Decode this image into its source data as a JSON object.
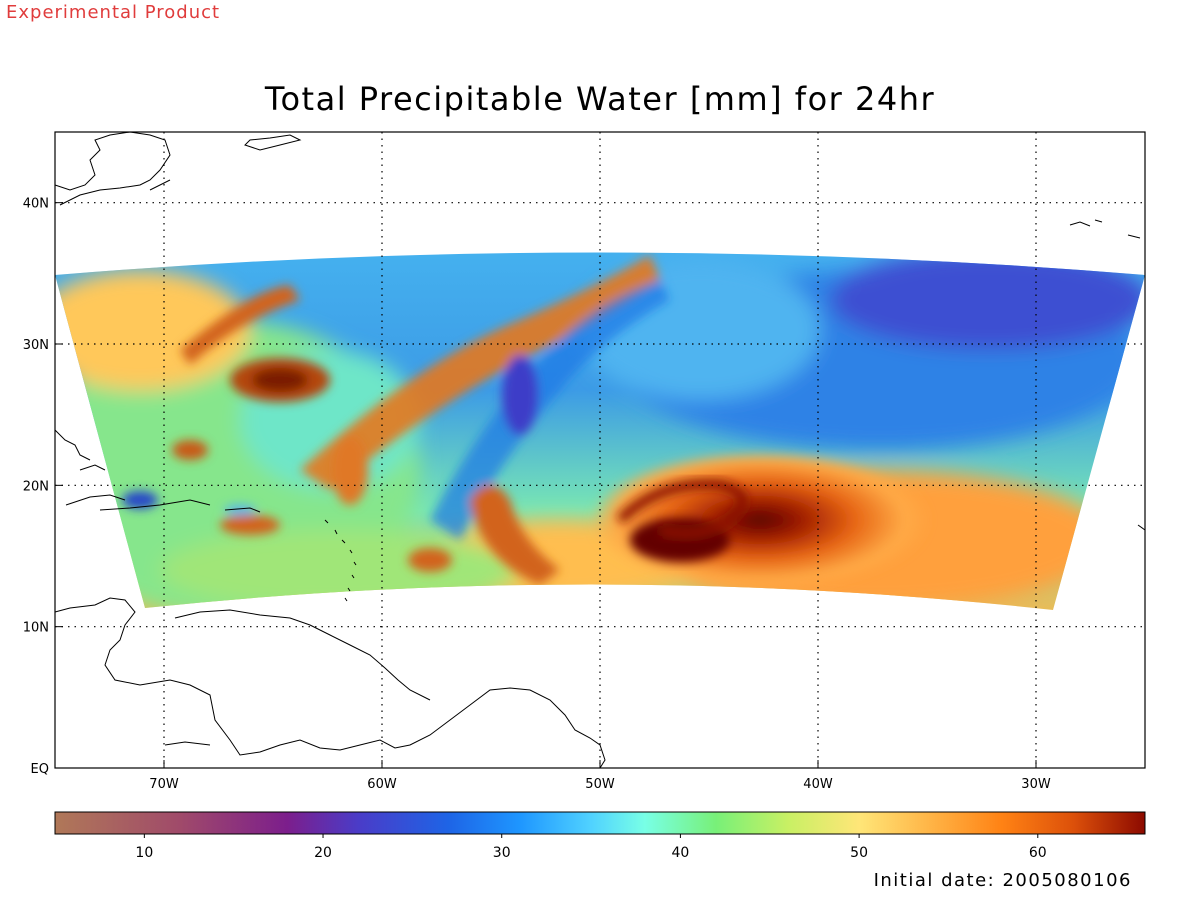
{
  "header": {
    "badge": "Experimental Product",
    "title": "Total Precipitable Water [mm] for 24hr",
    "initial_date": "Initial date: 2005080106"
  },
  "colors": {
    "badge": "#e03c3c",
    "frame": "#000000",
    "grid": "#000000"
  },
  "map": {
    "projection": "lat-lon",
    "lon_range": [
      -75,
      -25
    ],
    "lat_range": [
      0,
      45
    ],
    "lon_ticks": [
      {
        "value": -70,
        "label": "70W"
      },
      {
        "value": -60,
        "label": "60W"
      },
      {
        "value": -50,
        "label": "50W"
      },
      {
        "value": -40,
        "label": "40W"
      },
      {
        "value": -30,
        "label": "30W"
      }
    ],
    "lat_ticks": [
      {
        "value": 0,
        "label": "EQ"
      },
      {
        "value": 10,
        "label": "10N"
      },
      {
        "value": 20,
        "label": "20N"
      },
      {
        "value": 30,
        "label": "30N"
      },
      {
        "value": 40,
        "label": "40N"
      }
    ],
    "gridlines": "dotted",
    "field": "total precipitable water (mm)",
    "feature": "tropical cyclone moisture maximum near 15N 46W"
  },
  "colorbar": {
    "range": [
      5,
      66
    ],
    "tick_labels": [
      "10",
      "20",
      "30",
      "40",
      "50",
      "60"
    ],
    "tick_values": [
      10,
      20,
      30,
      40,
      50,
      60
    ],
    "stops": [
      {
        "v": 5,
        "c": "#b07858"
      },
      {
        "v": 12,
        "c": "#a04a6a"
      },
      {
        "v": 18,
        "c": "#7c1e8c"
      },
      {
        "v": 22,
        "c": "#4a3cc8"
      },
      {
        "v": 27,
        "c": "#1e64e6"
      },
      {
        "v": 31,
        "c": "#1e96ff"
      },
      {
        "v": 35,
        "c": "#50d2ff"
      },
      {
        "v": 38,
        "c": "#78ffe6"
      },
      {
        "v": 42,
        "c": "#78f078"
      },
      {
        "v": 46,
        "c": "#c8f064"
      },
      {
        "v": 50,
        "c": "#ffe678"
      },
      {
        "v": 54,
        "c": "#ffb446"
      },
      {
        "v": 58,
        "c": "#ff8214"
      },
      {
        "v": 62,
        "c": "#dc500a"
      },
      {
        "v": 66,
        "c": "#8c0a00"
      }
    ]
  }
}
